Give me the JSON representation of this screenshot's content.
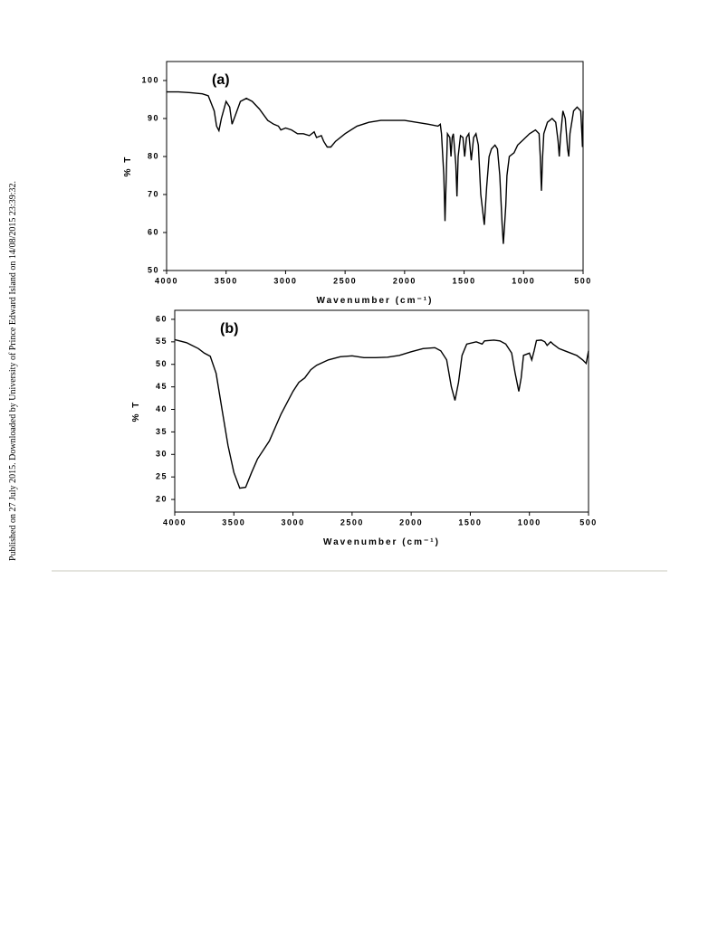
{
  "side_note": "Published on 27 July 2015. Downloaded by University of Prince Edward Island on 14/08/2015 23:39:32.",
  "chart_data": [
    {
      "type": "line",
      "annotation": "(a)",
      "xlabel": "Wavenumber (cm⁻¹)",
      "ylabel": "% T",
      "xlim": [
        4000,
        500
      ],
      "ylim": [
        50,
        105
      ],
      "xticks": [
        4000,
        3500,
        3000,
        2500,
        2000,
        1500,
        1000,
        500
      ],
      "yticks": [
        50,
        60,
        70,
        80,
        90,
        100
      ],
      "x": [
        4000,
        3900,
        3800,
        3700,
        3650,
        3600,
        3580,
        3560,
        3540,
        3500,
        3470,
        3450,
        3420,
        3380,
        3330,
        3280,
        3220,
        3150,
        3100,
        3060,
        3040,
        3000,
        2950,
        2900,
        2850,
        2800,
        2760,
        2740,
        2700,
        2680,
        2650,
        2620,
        2580,
        2500,
        2400,
        2350,
        2300,
        2200,
        2100,
        2000,
        1900,
        1800,
        1720,
        1700,
        1690,
        1670,
        1660,
        1650,
        1640,
        1620,
        1610,
        1600,
        1590,
        1570,
        1560,
        1550,
        1530,
        1510,
        1495,
        1480,
        1460,
        1440,
        1420,
        1400,
        1380,
        1360,
        1330,
        1310,
        1290,
        1270,
        1240,
        1220,
        1200,
        1180,
        1170,
        1160,
        1150,
        1140,
        1120,
        1080,
        1050,
        1000,
        950,
        900,
        870,
        860,
        850,
        840,
        830,
        800,
        760,
        730,
        710,
        700,
        690,
        670,
        650,
        630,
        620,
        610,
        580,
        550,
        520,
        510,
        505,
        500
      ],
      "series": [
        {
          "color": "#000000",
          "values": [
            97,
            97,
            96.8,
            96.5,
            96,
            92,
            88,
            86.8,
            90,
            94.5,
            93,
            88.5,
            91,
            94.5,
            95.3,
            94.5,
            92.5,
            89.5,
            88.5,
            88,
            87,
            87.5,
            87,
            86,
            86,
            85.5,
            86.5,
            85,
            85.5,
            84,
            82.5,
            82.5,
            84,
            86,
            88,
            88.5,
            89,
            89.5,
            89.5,
            89.5,
            89,
            88.5,
            88,
            88.5,
            86,
            75,
            63,
            75,
            86,
            85,
            80,
            85,
            86,
            78,
            69.5,
            80,
            85.5,
            85,
            80,
            85,
            86,
            79,
            85,
            86,
            83,
            70,
            62,
            72,
            80,
            82,
            83,
            82,
            75,
            62,
            57,
            62,
            67,
            75,
            80,
            81,
            83,
            84.5,
            86,
            87,
            86,
            80,
            71,
            80,
            86,
            89,
            90,
            89,
            84,
            80,
            85,
            92,
            90,
            82,
            80,
            86,
            92,
            93,
            92,
            86,
            82.5,
            92
          ]
        }
      ]
    },
    {
      "type": "line",
      "annotation": "(b)",
      "xlabel": "Wavenumber (cm⁻¹)",
      "ylabel": "% T",
      "xlim": [
        4000,
        500
      ],
      "ylim": [
        17.2,
        62
      ],
      "xticks": [
        4000,
        3500,
        3000,
        2500,
        2000,
        1500,
        1000,
        500
      ],
      "yticks": [
        20,
        25,
        30,
        35,
        40,
        45,
        50,
        55,
        60
      ],
      "x": [
        4000,
        3900,
        3800,
        3750,
        3700,
        3650,
        3600,
        3550,
        3500,
        3450,
        3400,
        3350,
        3300,
        3200,
        3100,
        3000,
        2950,
        2900,
        2850,
        2800,
        2700,
        2600,
        2500,
        2400,
        2300,
        2200,
        2100,
        2000,
        1900,
        1800,
        1750,
        1700,
        1660,
        1630,
        1600,
        1570,
        1530,
        1450,
        1400,
        1380,
        1300,
        1250,
        1200,
        1150,
        1120,
        1090,
        1070,
        1050,
        1000,
        980,
        960,
        940,
        900,
        870,
        850,
        820,
        800,
        750,
        700,
        650,
        600,
        550,
        520,
        500
      ],
      "series": [
        {
          "color": "#000000",
          "values": [
            55.5,
            54.8,
            53.5,
            52.5,
            51.8,
            48,
            40,
            32,
            26,
            22.5,
            22.7,
            26,
            29,
            33,
            39,
            44,
            46,
            47,
            48.8,
            49.8,
            51,
            51.7,
            51.9,
            51.5,
            51.5,
            51.6,
            52,
            52.8,
            53.5,
            53.7,
            53,
            51,
            45,
            42,
            46,
            52,
            54.5,
            55,
            54.5,
            55.2,
            55.4,
            55.2,
            54.5,
            52.5,
            48,
            44,
            47,
            52,
            52.5,
            51,
            53,
            55.3,
            55.4,
            55,
            54.2,
            55,
            54.5,
            53.5,
            53,
            52.5,
            52,
            51,
            50.2,
            53
          ]
        }
      ]
    }
  ]
}
